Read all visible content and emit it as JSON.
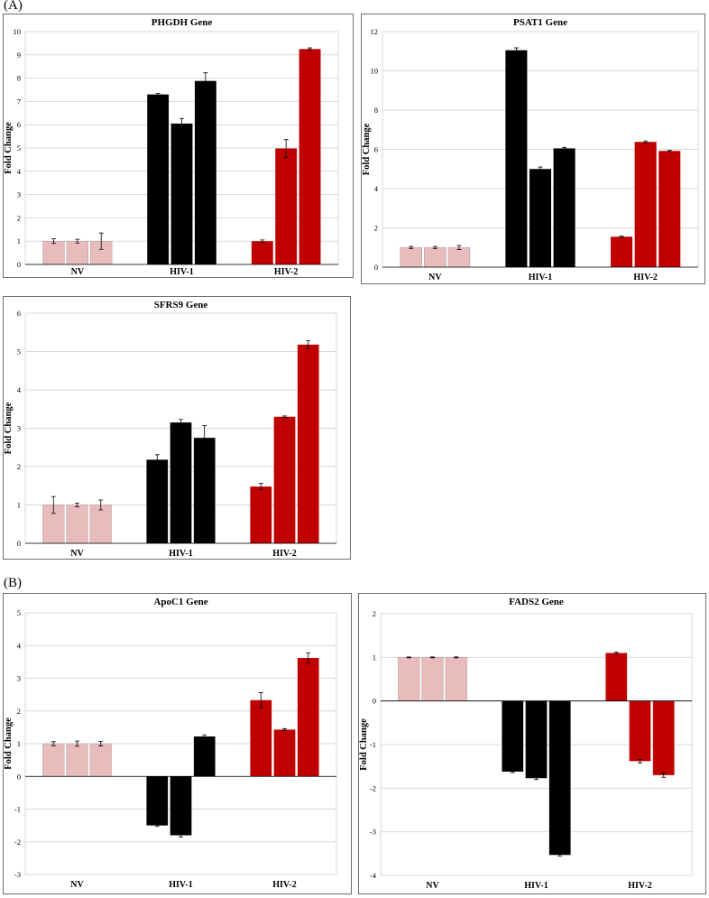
{
  "sections": {
    "a_label": "(A)",
    "b_label": "(B)"
  },
  "colors": {
    "NV": "#e8bcbc",
    "HIV-1": "#000000",
    "HIV-2": "#c00000"
  },
  "chart_data": [
    {
      "type": "bar",
      "title": "PHGDH Gene",
      "ylabel": "Fold Change",
      "xlabel": "",
      "categories": [
        "NV",
        "HIV-1",
        "HIV-2"
      ],
      "bars_per_group": 3,
      "values": [
        [
          1.0,
          1.0,
          1.0
        ],
        [
          7.3,
          6.05,
          7.88
        ],
        [
          1.0,
          4.98,
          9.25
        ]
      ],
      "errors": [
        [
          0.1,
          0.08,
          0.35
        ],
        [
          0.05,
          0.22,
          0.35
        ],
        [
          0.05,
          0.38,
          0.05
        ]
      ],
      "ylim": [
        0,
        10
      ],
      "yticks": [
        0,
        1,
        2,
        3,
        4,
        5,
        6,
        7,
        8,
        9,
        10
      ],
      "grid": true,
      "legend": "none"
    },
    {
      "type": "bar",
      "title": "PSAT1 Gene",
      "ylabel": "Fold Change",
      "xlabel": "",
      "categories": [
        "NV",
        "HIV-1",
        "HIV-2"
      ],
      "bars_per_group": 3,
      "values": [
        [
          1.0,
          1.0,
          1.0
        ],
        [
          11.05,
          5.0,
          6.05
        ],
        [
          1.55,
          6.38,
          5.92
        ]
      ],
      "errors": [
        [
          0.05,
          0.05,
          0.1
        ],
        [
          0.12,
          0.1,
          0.05
        ],
        [
          0.03,
          0.05,
          0.03
        ]
      ],
      "ylim": [
        0,
        12
      ],
      "yticks": [
        0,
        2,
        4,
        6,
        8,
        10,
        12
      ],
      "grid": true,
      "legend": "none"
    },
    {
      "type": "bar",
      "title": "SFRS9 Gene",
      "ylabel": "Fold Change",
      "xlabel": "",
      "categories": [
        "NV",
        "HIV-1",
        "HIV-2"
      ],
      "bars_per_group": 3,
      "values": [
        [
          1.0,
          1.0,
          1.0
        ],
        [
          2.18,
          3.15,
          2.75
        ],
        [
          1.48,
          3.3,
          5.18
        ]
      ],
      "errors": [
        [
          0.22,
          0.05,
          0.13
        ],
        [
          0.13,
          0.08,
          0.32
        ],
        [
          0.08,
          0.02,
          0.1
        ]
      ],
      "ylim": [
        0,
        6
      ],
      "yticks": [
        0,
        1,
        2,
        3,
        4,
        5,
        6
      ],
      "grid": true,
      "legend": "none"
    },
    {
      "type": "bar",
      "title": "ApoC1 Gene",
      "ylabel": "Fold Change",
      "xlabel": "",
      "categories": [
        "NV",
        "HIV-1",
        "HIV-2"
      ],
      "bars_per_group": 3,
      "values": [
        [
          1.0,
          1.0,
          1.0
        ],
        [
          -1.5,
          -1.8,
          1.22
        ],
        [
          2.33,
          1.43,
          3.62
        ]
      ],
      "errors": [
        [
          0.06,
          0.08,
          0.07
        ],
        [
          0.03,
          0.05,
          0.05
        ],
        [
          0.23,
          0.03,
          0.15
        ]
      ],
      "ylim": [
        -3,
        5
      ],
      "yticks": [
        -3,
        -2,
        -1,
        0,
        1,
        2,
        3,
        4,
        5
      ],
      "grid": true,
      "legend": "none"
    },
    {
      "type": "bar",
      "title": "FADS2 Gene",
      "ylabel": "Fold Change",
      "xlabel": "",
      "categories": [
        "NV",
        "HIV-1",
        "HIV-2"
      ],
      "bars_per_group": 3,
      "values": [
        [
          1.0,
          1.0,
          1.0
        ],
        [
          -1.62,
          -1.77,
          -3.53
        ],
        [
          1.1,
          -1.38,
          -1.7
        ]
      ],
      "errors": [
        [
          0.01,
          0.01,
          0.01
        ],
        [
          0.02,
          0.03,
          0.03
        ],
        [
          0.02,
          0.04,
          0.05
        ]
      ],
      "ylim": [
        -4,
        2
      ],
      "yticks": [
        -4,
        -3,
        -2,
        -1,
        0,
        1,
        2
      ],
      "grid": true,
      "legend": "none"
    }
  ]
}
